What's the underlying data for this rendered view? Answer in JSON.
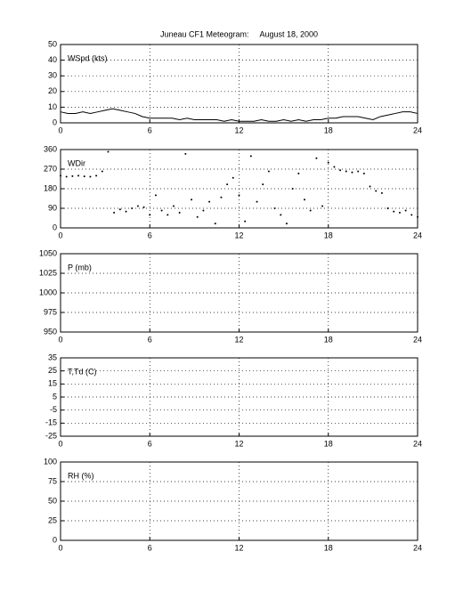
{
  "chart_data": [
    {
      "type": "line",
      "title": "Juneau CF1 Meteogram:     August 18, 2000",
      "label": "WSpd (kts)",
      "xlim": [
        0,
        24
      ],
      "xticks": [
        0,
        6,
        12,
        18,
        24
      ],
      "ylim": [
        0,
        50
      ],
      "yticks": [
        0,
        10,
        20,
        30,
        40,
        50
      ],
      "grid": true,
      "series": [
        {
          "color": "#000000",
          "x": [
            0,
            0.5,
            1,
            1.5,
            2,
            2.5,
            3,
            3.5,
            4,
            4.5,
            5,
            5.5,
            6,
            6.5,
            7,
            7.5,
            8,
            8.5,
            9,
            9.5,
            10,
            10.5,
            11,
            11.5,
            12,
            12.5,
            13,
            13.5,
            14,
            14.5,
            15,
            15.5,
            16,
            16.5,
            17,
            17.5,
            18,
            18.5,
            19,
            19.5,
            20,
            20.5,
            21,
            21.5,
            22,
            22.5,
            23,
            23.5,
            24
          ],
          "values": [
            7,
            6,
            6,
            7,
            6,
            7,
            8,
            9,
            8,
            7,
            6,
            4,
            3,
            3,
            3,
            3,
            2,
            3,
            2,
            2,
            2,
            2,
            1,
            2,
            1,
            1,
            1,
            2,
            1,
            1,
            2,
            1,
            2,
            1,
            2,
            2,
            3,
            3,
            4,
            4,
            4,
            3,
            2,
            4,
            5,
            6,
            7,
            7,
            6
          ]
        }
      ]
    },
    {
      "type": "scatter",
      "label": "WDir",
      "xlim": [
        0,
        24
      ],
      "xticks": [
        0,
        6,
        12,
        18,
        24
      ],
      "ylim": [
        0,
        360
      ],
      "yticks": [
        0,
        90,
        180,
        270,
        360
      ],
      "grid": true,
      "series": [
        {
          "color": "#000000",
          "x": [
            0,
            0.4,
            0.8,
            1.2,
            1.6,
            2,
            2.4,
            2.8,
            3.2,
            3.6,
            4,
            4.4,
            4.8,
            5.2,
            5.6,
            6,
            6.4,
            6.8,
            7.2,
            7.6,
            8,
            8.4,
            8.8,
            9.2,
            9.6,
            10,
            10.4,
            10.8,
            11.2,
            11.6,
            12,
            12.4,
            12.8,
            13.2,
            13.6,
            14,
            14.4,
            14.8,
            15.2,
            15.6,
            16,
            16.4,
            16.8,
            17.2,
            17.6,
            18,
            18.4,
            18.8,
            19.2,
            19.6,
            20,
            20.4,
            20.8,
            21.2,
            21.6,
            22,
            22.4,
            22.8,
            23.2,
            23.6,
            24
          ],
          "values": [
            240,
            235,
            238,
            240,
            237,
            235,
            240,
            260,
            350,
            70,
            85,
            75,
            90,
            100,
            95,
            60,
            150,
            80,
            60,
            100,
            70,
            340,
            130,
            50,
            80,
            120,
            20,
            140,
            200,
            230,
            150,
            30,
            330,
            120,
            200,
            260,
            90,
            60,
            20,
            180,
            250,
            130,
            80,
            320,
            100,
            300,
            280,
            265,
            260,
            255,
            260,
            250,
            190,
            170,
            160,
            90,
            75,
            70,
            80,
            60,
            50
          ]
        }
      ]
    },
    {
      "type": "line",
      "label": "P (mb)",
      "xlim": [
        0,
        24
      ],
      "xticks": [
        0,
        6,
        12,
        18,
        24
      ],
      "ylim": [
        950,
        1050
      ],
      "yticks": [
        950,
        975,
        1000,
        1025,
        1050
      ],
      "grid": true,
      "series": []
    },
    {
      "type": "line",
      "label": "T,Td (C)",
      "xlim": [
        0,
        24
      ],
      "xticks": [
        0,
        6,
        12,
        18,
        24
      ],
      "ylim": [
        -25,
        35
      ],
      "yticks": [
        -25,
        -15,
        -5,
        5,
        15,
        25,
        35
      ],
      "grid": true,
      "series": []
    },
    {
      "type": "line",
      "label": "RH (%)",
      "xlim": [
        0,
        24
      ],
      "xticks": [
        0,
        6,
        12,
        18,
        24
      ],
      "ylim": [
        0,
        100
      ],
      "yticks": [
        0,
        25,
        50,
        75,
        100
      ],
      "grid": true,
      "series": []
    }
  ]
}
